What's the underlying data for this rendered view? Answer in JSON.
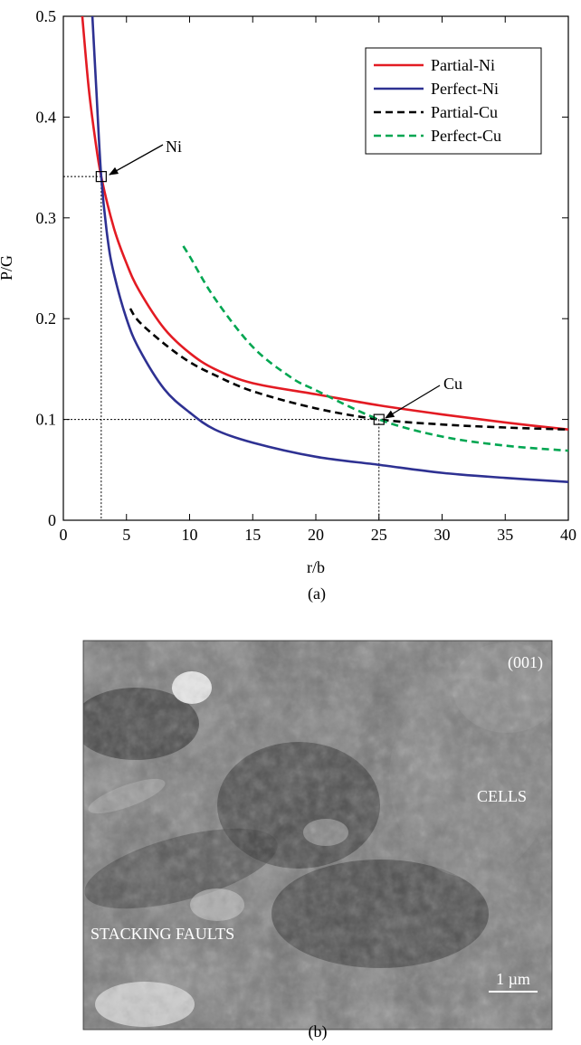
{
  "chart_data": {
    "type": "line",
    "xlabel": "r/b",
    "ylabel": "P/G",
    "panel_label": "(a)",
    "xlim": [
      0,
      40
    ],
    "ylim": [
      0,
      0.5
    ],
    "x_ticks": [
      0,
      5,
      10,
      15,
      20,
      25,
      30,
      35,
      40
    ],
    "y_ticks": [
      0,
      0.1,
      0.2,
      0.3,
      0.4,
      0.5
    ],
    "x_tick_labels": [
      "0",
      "5",
      "10",
      "15",
      "20",
      "25",
      "30",
      "35",
      "40"
    ],
    "y_tick_labels": [
      "0",
      "0.1",
      "0.2",
      "0.3",
      "0.4",
      "0.5"
    ],
    "grid": false,
    "legend_position": "top-right",
    "series": [
      {
        "name": "Partial-Ni",
        "color": "#e31b23",
        "dash": "solid",
        "x": [
          1.5,
          2,
          2.5,
          3,
          4,
          5,
          6,
          8,
          10,
          12,
          15,
          20,
          25,
          30,
          35,
          40
        ],
        "y": [
          0.5,
          0.43,
          0.38,
          0.341,
          0.29,
          0.255,
          0.228,
          0.19,
          0.166,
          0.15,
          0.136,
          0.125,
          0.114,
          0.105,
          0.097,
          0.09
        ]
      },
      {
        "name": "Perfect-Ni",
        "color": "#2e3192",
        "dash": "solid",
        "x": [
          2.3,
          2.6,
          3,
          3.5,
          4,
          5,
          6,
          8,
          10,
          12,
          15,
          20,
          25,
          30,
          35,
          40
        ],
        "y": [
          0.5,
          0.43,
          0.341,
          0.28,
          0.245,
          0.2,
          0.17,
          0.13,
          0.107,
          0.09,
          0.077,
          0.063,
          0.055,
          0.047,
          0.042,
          0.038
        ]
      },
      {
        "name": "Partial-Cu",
        "color": "#000000",
        "dash": "dashed",
        "x": [
          5.3,
          6,
          8,
          10,
          12,
          15,
          20,
          25,
          30,
          35,
          40
        ],
        "y": [
          0.21,
          0.197,
          0.175,
          0.157,
          0.144,
          0.128,
          0.111,
          0.1,
          0.095,
          0.092,
          0.09
        ]
      },
      {
        "name": "Perfect-Cu",
        "color": "#00a651",
        "dash": "dashed",
        "x": [
          9.5,
          10,
          12,
          15,
          18,
          20,
          25,
          30,
          35,
          40
        ],
        "y": [
          0.272,
          0.262,
          0.22,
          0.172,
          0.142,
          0.129,
          0.1,
          0.083,
          0.074,
          0.069
        ]
      }
    ],
    "annotations": [
      {
        "text": "Ni",
        "x": 3,
        "y": 0.341
      },
      {
        "text": "Cu",
        "x": 25,
        "y": 0.1
      }
    ]
  },
  "micrograph": {
    "panel_label": "(b)",
    "orientation_label": "(001)",
    "label_cells": "CELLS",
    "label_stacking_faults": "STACKING FAULTS",
    "scale_bar_label": "1 µm"
  }
}
